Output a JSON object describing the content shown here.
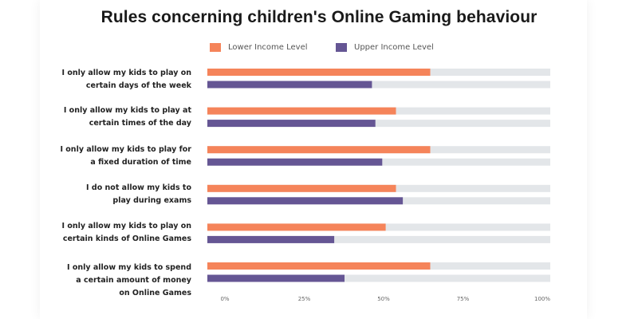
{
  "chart_data": {
    "type": "bar",
    "orientation": "horizontal",
    "title": "Rules concerning children's Online Gaming behaviour",
    "xlabel": "",
    "ylabel": "",
    "xlim": [
      0,
      100
    ],
    "x_ticks": [
      "0%",
      "25%",
      "50%",
      "75%",
      "100%"
    ],
    "grid": false,
    "legend_position": "top-center",
    "categories": [
      [
        "I only allow my kids to play on",
        "certain days of the week"
      ],
      [
        "I only allow my kids to play at",
        "certain times of the day"
      ],
      [
        "I only allow my kids to play for",
        "a fixed duration of time"
      ],
      [
        "I do not allow my kids to",
        "play during exams"
      ],
      [
        "I only allow my kids to play on",
        "certain kinds of Online Games"
      ],
      [
        "I only allow my kids to spend",
        "a certain amount of money",
        "on Online Games"
      ]
    ],
    "series": [
      {
        "name": "Lower Income Level",
        "color": "#f5845a",
        "values": [
          65,
          55,
          65,
          55,
          52,
          65
        ]
      },
      {
        "name": "Upper Income Level",
        "color": "#655694",
        "values": [
          48,
          49,
          51,
          57,
          37,
          40
        ]
      }
    ],
    "track_color": "#e3e6e9"
  }
}
